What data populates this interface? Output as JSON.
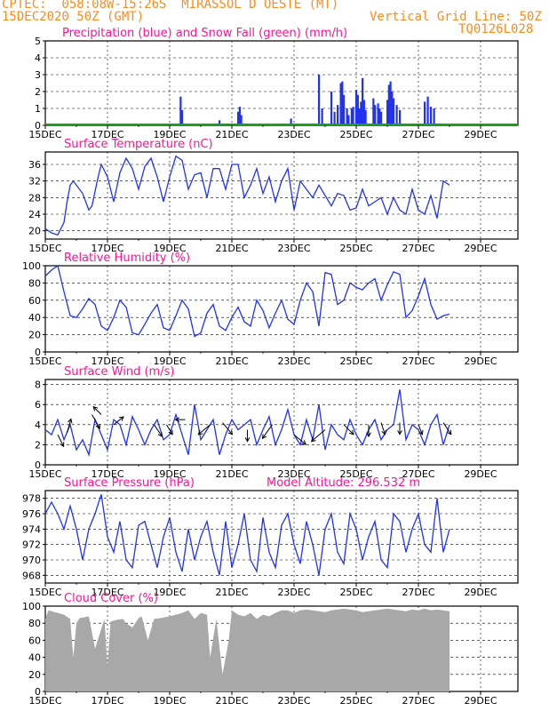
{
  "header": {
    "line1": "CPTEC:  058:08W-15:26S  MIRASSOL D OESTE (MT)",
    "line2": "15DEC2020 50Z (GMT)",
    "grid_note": "Vertical Grid Line: 50Z",
    "code": "TQ0126L028"
  },
  "colors": {
    "title": "#ff1493",
    "header": "#ff8c1a",
    "series": "#2233ee",
    "snow": "#1aa01a",
    "cloud": "#a8a8a8",
    "arrow": "#000000"
  },
  "chart_data": [
    {
      "type": "bar",
      "title": "Precipitation (blue) and Snow Fall (green) (mm/h)",
      "x_ticks": [
        "15DEC",
        "17DEC",
        "19DEC",
        "21DEC",
        "23DEC",
        "25DEC",
        "27DEC",
        "29DEC"
      ],
      "ylim": [
        0,
        5
      ],
      "y_ticks": [
        "0",
        "1",
        "2",
        "3",
        "4",
        "5"
      ],
      "series": [
        {
          "name": "precipitation",
          "values": [
            [
              4.35,
              1.7
            ],
            [
              4.4,
              0.9
            ],
            [
              5.6,
              0.3
            ],
            [
              6.2,
              0.8
            ],
            [
              6.25,
              1.1
            ],
            [
              6.3,
              0.6
            ],
            [
              7.9,
              0.4
            ],
            [
              8.8,
              3.0
            ],
            [
              8.9,
              1.0
            ],
            [
              9.2,
              2.0
            ],
            [
              9.3,
              0.8
            ],
            [
              9.4,
              1.2
            ],
            [
              9.5,
              2.5
            ],
            [
              9.55,
              2.6
            ],
            [
              9.6,
              1.8
            ],
            [
              9.7,
              1.0
            ],
            [
              9.75,
              0.6
            ],
            [
              9.85,
              1.0
            ],
            [
              9.9,
              1.1
            ],
            [
              10.0,
              2.1
            ],
            [
              10.05,
              1.8
            ],
            [
              10.1,
              1.0
            ],
            [
              10.15,
              1.4
            ],
            [
              10.2,
              2.8
            ],
            [
              10.25,
              1.5
            ],
            [
              10.3,
              0.9
            ],
            [
              10.55,
              1.6
            ],
            [
              10.6,
              1.2
            ],
            [
              10.7,
              1.3
            ],
            [
              10.75,
              1.0
            ],
            [
              10.8,
              0.8
            ],
            [
              11.0,
              1.5
            ],
            [
              11.05,
              2.4
            ],
            [
              11.1,
              2.6
            ],
            [
              11.15,
              2.0
            ],
            [
              11.2,
              1.6
            ],
            [
              11.3,
              1.2
            ],
            [
              11.4,
              0.9
            ],
            [
              12.2,
              1.4
            ],
            [
              12.3,
              1.7
            ],
            [
              12.4,
              1.1
            ],
            [
              12.5,
              1.0
            ]
          ]
        },
        {
          "name": "snow",
          "values": []
        }
      ]
    },
    {
      "type": "line",
      "title": "Surface Temperature (nC)",
      "x_ticks": [
        "15DEC",
        "17DEC",
        "19DEC",
        "21DEC",
        "23DEC",
        "25DEC",
        "27DEC",
        "29DEC"
      ],
      "ylim": [
        18,
        39
      ],
      "y_ticks": [
        "20",
        "24",
        "28",
        "32",
        "36"
      ],
      "x": [
        0,
        0.2,
        0.4,
        0.6,
        0.7,
        0.8,
        0.9,
        1.2,
        1.4,
        1.5,
        1.7,
        1.8,
        2.0,
        2.2,
        2.4,
        2.6,
        2.8,
        3.0,
        3.2,
        3.4,
        3.6,
        3.8,
        4.0,
        4.2,
        4.4,
        4.6,
        4.8,
        5.0,
        5.2,
        5.4,
        5.6,
        5.8,
        6.0,
        6.2,
        6.4,
        6.6,
        6.8,
        7.0,
        7.2,
        7.4,
        7.6,
        7.8,
        8.0,
        8.2,
        8.4,
        8.6,
        8.8,
        9.0,
        9.2,
        9.4,
        9.6,
        9.8,
        10.0,
        10.2,
        10.4,
        10.6,
        10.8,
        11.0,
        11.2,
        11.4,
        11.6,
        11.8,
        12.0,
        12.2,
        12.4,
        12.6,
        12.8,
        13.0
      ],
      "values": [
        20.5,
        19.5,
        19.0,
        22.0,
        27.0,
        31.0,
        32.0,
        29.0,
        25.0,
        26.0,
        33.0,
        36.0,
        33.0,
        27.0,
        34.0,
        37.5,
        35.0,
        30.0,
        35.5,
        37.5,
        33.0,
        27.0,
        33.0,
        38.0,
        37.0,
        30.0,
        33.5,
        34.0,
        28.0,
        35.0,
        35.0,
        30.0,
        36.0,
        36.0,
        28.0,
        31.0,
        35.0,
        29.0,
        33.0,
        27.0,
        32.0,
        35.0,
        25.0,
        32.0,
        30.0,
        28.0,
        31.0,
        28.5,
        26.0,
        29.0,
        28.5,
        25.0,
        25.5,
        30.0,
        26.0,
        27.0,
        28.0,
        24.0,
        28.0,
        25.0,
        24.0,
        30.0,
        25.0,
        24.0,
        28.5,
        23.0,
        32.0,
        31.0
      ]
    },
    {
      "type": "line",
      "title": "Relative Humidity (%)",
      "x_ticks": [
        "15DEC",
        "17DEC",
        "19DEC",
        "21DEC",
        "23DEC",
        "25DEC",
        "27DEC",
        "29DEC"
      ],
      "ylim": [
        0,
        100
      ],
      "y_ticks": [
        "0",
        "20",
        "40",
        "60",
        "80",
        "100"
      ],
      "x": [
        0,
        0.2,
        0.4,
        0.6,
        0.8,
        1.0,
        1.2,
        1.4,
        1.6,
        1.8,
        2.0,
        2.2,
        2.4,
        2.6,
        2.8,
        3.0,
        3.2,
        3.4,
        3.6,
        3.8,
        4.0,
        4.2,
        4.4,
        4.6,
        4.8,
        5.0,
        5.2,
        5.4,
        5.6,
        5.8,
        6.0,
        6.2,
        6.4,
        6.6,
        6.8,
        7.0,
        7.2,
        7.4,
        7.6,
        7.8,
        8.0,
        8.2,
        8.4,
        8.6,
        8.8,
        9.0,
        9.2,
        9.4,
        9.6,
        9.8,
        10.0,
        10.2,
        10.4,
        10.6,
        10.8,
        11.0,
        11.2,
        11.4,
        11.6,
        11.8,
        12.0,
        12.2,
        12.4,
        12.6,
        12.8,
        13.0
      ],
      "values": [
        88,
        95,
        100,
        70,
        42,
        40,
        50,
        62,
        55,
        30,
        25,
        40,
        60,
        52,
        22,
        20,
        32,
        45,
        55,
        28,
        25,
        42,
        60,
        50,
        18,
        22,
        45,
        55,
        30,
        25,
        40,
        52,
        35,
        30,
        60,
        48,
        28,
        45,
        60,
        38,
        32,
        60,
        80,
        70,
        30,
        92,
        90,
        55,
        60,
        80,
        75,
        72,
        80,
        85,
        60,
        78,
        93,
        90,
        40,
        48,
        65,
        85,
        55,
        38,
        42,
        44
      ]
    },
    {
      "type": "line",
      "title": "Surface Wind (m/s)",
      "x_ticks": [
        "15DEC",
        "17DEC",
        "19DEC",
        "21DEC",
        "23DEC",
        "25DEC",
        "27DEC",
        "29DEC"
      ],
      "ylim": [
        0,
        8.5
      ],
      "y_ticks": [
        "0",
        "2",
        "4",
        "6",
        "8"
      ],
      "x": [
        0,
        0.2,
        0.4,
        0.6,
        0.8,
        1.0,
        1.2,
        1.4,
        1.6,
        1.8,
        2.0,
        2.2,
        2.4,
        2.6,
        2.8,
        3.0,
        3.2,
        3.4,
        3.6,
        3.8,
        4.0,
        4.2,
        4.4,
        4.6,
        4.8,
        5.0,
        5.2,
        5.4,
        5.6,
        5.8,
        6.0,
        6.2,
        6.4,
        6.6,
        6.8,
        7.0,
        7.2,
        7.4,
        7.6,
        7.8,
        8.0,
        8.2,
        8.4,
        8.6,
        8.8,
        9.0,
        9.2,
        9.4,
        9.6,
        9.8,
        10.0,
        10.2,
        10.4,
        10.6,
        10.8,
        11.0,
        11.2,
        11.4,
        11.6,
        11.8,
        12.0,
        12.2,
        12.4,
        12.6,
        12.8,
        13.0
      ],
      "values": [
        3.5,
        3.0,
        4.5,
        2.5,
        4.0,
        1.5,
        2.5,
        1.0,
        4.5,
        3.0,
        1.5,
        4.5,
        4.0,
        2.0,
        4.8,
        3.5,
        2.0,
        3.5,
        4.5,
        2.5,
        3.0,
        5.0,
        3.0,
        1.0,
        6.0,
        2.5,
        3.5,
        4.5,
        1.0,
        3.0,
        4.5,
        3.5,
        4.0,
        4.5,
        2.0,
        3.5,
        4.8,
        2.0,
        3.5,
        5.5,
        3.0,
        2.0,
        4.5,
        2.5,
        6.0,
        1.5,
        4.0,
        3.0,
        2.5,
        4.5,
        3.0,
        2.0,
        3.5,
        4.5,
        2.5,
        3.5,
        4.0,
        7.5,
        2.5,
        4.0,
        3.5,
        2.0,
        4.0,
        5.0,
        2.0,
        4.0
      ],
      "barbs": [
        [
          0.4,
          3.0,
          0.3,
          0.6
        ],
        [
          0.7,
          3.2,
          0.2,
          -0.7
        ],
        [
          1.5,
          5.0,
          0.4,
          0.7
        ],
        [
          1.8,
          5.0,
          -0.4,
          -0.4
        ],
        [
          2.2,
          4.0,
          0.5,
          -0.4
        ],
        [
          3.5,
          4.0,
          0.4,
          0.6
        ],
        [
          3.9,
          4.0,
          0.3,
          0.5
        ],
        [
          4.5,
          4.5,
          -0.5,
          0.0
        ],
        [
          5.3,
          4.0,
          -0.6,
          0.5
        ],
        [
          5.7,
          4.2,
          0.5,
          0.6
        ],
        [
          6.5,
          3.5,
          0.0,
          0.6
        ],
        [
          7.3,
          4.0,
          -0.5,
          0.7
        ],
        [
          8.0,
          3.0,
          0.6,
          0.5
        ],
        [
          9.0,
          3.5,
          -0.7,
          0.6
        ],
        [
          9.6,
          4.0,
          0.5,
          0.5
        ],
        [
          10.4,
          4.0,
          0.0,
          0.6
        ],
        [
          10.8,
          4.2,
          0.2,
          0.6
        ],
        [
          11.4,
          4.2,
          0.0,
          0.6
        ],
        [
          12.0,
          4.0,
          0.2,
          0.5
        ],
        [
          12.8,
          4.2,
          0.4,
          0.6
        ]
      ]
    },
    {
      "type": "line",
      "title": "Surface Pressure (hPa)",
      "annotation": "Model Altitude: 296.532 m",
      "x_ticks": [
        "15DEC",
        "17DEC",
        "19DEC",
        "21DEC",
        "23DEC",
        "25DEC",
        "27DEC",
        "29DEC"
      ],
      "ylim": [
        967,
        979
      ],
      "y_ticks": [
        "968",
        "970",
        "972",
        "974",
        "976",
        "978"
      ],
      "x": [
        0,
        0.2,
        0.4,
        0.6,
        0.8,
        1.0,
        1.2,
        1.4,
        1.6,
        1.8,
        2.0,
        2.2,
        2.4,
        2.6,
        2.8,
        3.0,
        3.2,
        3.4,
        3.6,
        3.8,
        4.0,
        4.2,
        4.4,
        4.6,
        4.8,
        5.0,
        5.2,
        5.4,
        5.6,
        5.8,
        6.0,
        6.2,
        6.4,
        6.6,
        6.8,
        7.0,
        7.2,
        7.4,
        7.6,
        7.8,
        8.0,
        8.2,
        8.4,
        8.6,
        8.8,
        9.0,
        9.2,
        9.4,
        9.6,
        9.8,
        10.0,
        10.2,
        10.4,
        10.6,
        10.8,
        11.0,
        11.2,
        11.4,
        11.6,
        11.8,
        12.0,
        12.2,
        12.4,
        12.6,
        12.8,
        13.0
      ],
      "values": [
        976,
        977.5,
        976,
        974,
        977,
        974,
        970,
        974,
        976,
        978.5,
        973,
        971,
        975,
        970,
        969,
        974.5,
        975,
        972,
        969,
        973,
        975.5,
        971,
        968.5,
        974,
        970,
        973,
        975,
        971,
        968,
        975,
        969,
        972,
        976,
        970,
        968.5,
        975.5,
        971,
        969,
        974.5,
        976,
        972,
        969.5,
        975,
        972,
        968,
        974,
        976,
        971,
        969.5,
        976,
        974,
        970,
        973,
        975,
        970,
        969,
        976,
        975,
        971,
        974,
        976,
        972,
        971,
        978,
        971,
        974
      ]
    },
    {
      "type": "area",
      "title": "Cloud Cover (%)",
      "x_ticks": [
        "15DEC",
        "17DEC",
        "19DEC",
        "21DEC",
        "23DEC",
        "25DEC",
        "27DEC",
        "29DEC"
      ],
      "ylim": [
        0,
        100
      ],
      "y_ticks": [
        "0",
        "20",
        "40",
        "60",
        "80",
        "100"
      ],
      "x": [
        0,
        0.1,
        0.4,
        0.6,
        0.8,
        0.9,
        1.0,
        1.1,
        1.4,
        1.6,
        1.9,
        2.0,
        2.1,
        2.3,
        2.5,
        2.6,
        2.8,
        3.0,
        3.1,
        3.3,
        3.5,
        3.7,
        4.0,
        4.2,
        4.4,
        4.6,
        4.8,
        5.0,
        5.2,
        5.3,
        5.5,
        5.7,
        5.9,
        6.0,
        6.2,
        6.4,
        6.6,
        6.8,
        7.0,
        7.2,
        7.4,
        7.6,
        7.8,
        8.0,
        8.2,
        8.4,
        8.6,
        8.8,
        9.0,
        9.2,
        9.4,
        9.6,
        9.8,
        10.0,
        10.2,
        10.4,
        10.6,
        10.8,
        11.0,
        11.2,
        11.4,
        11.6,
        11.8,
        12.0,
        12.2,
        12.4,
        12.6,
        12.8,
        13.0
      ],
      "values": [
        85,
        95,
        92,
        90,
        85,
        40,
        80,
        86,
        88,
        50,
        85,
        30,
        82,
        84,
        85,
        80,
        75,
        86,
        88,
        60,
        85,
        86,
        88,
        90,
        92,
        95,
        85,
        92,
        90,
        40,
        85,
        20,
        60,
        95,
        90,
        88,
        92,
        85,
        90,
        88,
        92,
        95,
        95,
        92,
        95,
        96,
        95,
        94,
        93,
        95,
        96,
        97,
        96,
        95,
        93,
        94,
        95,
        96,
        97,
        96,
        95,
        94,
        96,
        95,
        97,
        95,
        96,
        95,
        94
      ]
    }
  ]
}
